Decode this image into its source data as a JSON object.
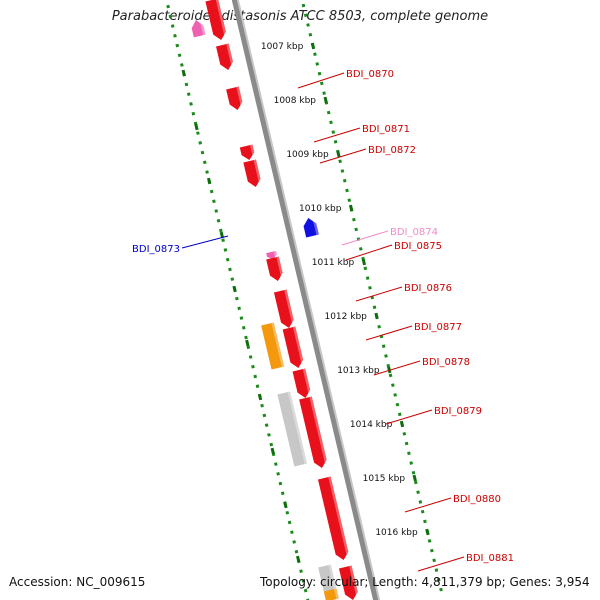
{
  "title": "Parabacteroides distasonis ATCC 8503, complete genome",
  "footer": {
    "accession": "Accession: NC_009615",
    "topology": "Topology: circular; Length: 4,811,379 bp; Genes: 3,954"
  },
  "colors": {
    "backbone": "#8a8a8a",
    "forward_gene": "#e8101a",
    "reverse_gene": "#1010e0",
    "orange_gene": "#f4980e",
    "gray_gene": "#c7c7c7",
    "pink_gene": "#f060b0",
    "tick_dots": "#1a8a1a"
  },
  "ticks": [
    {
      "label": "1007 kbp"
    },
    {
      "label": "1008 kbp"
    },
    {
      "label": "1009 kbp"
    },
    {
      "label": "1010 kbp"
    },
    {
      "label": "1011 kbp"
    },
    {
      "label": "1012 kbp"
    },
    {
      "label": "1013 kbp"
    },
    {
      "label": "1014 kbp"
    },
    {
      "label": "1015 kbp"
    },
    {
      "label": "1016 kbp"
    }
  ],
  "gene_labels": [
    {
      "name": "BDI_0870",
      "color": "#cc0000"
    },
    {
      "name": "BDI_0871",
      "color": "#cc0000"
    },
    {
      "name": "BDI_0872",
      "color": "#cc0000"
    },
    {
      "name": "BDI_0873",
      "color": "#0000cc"
    },
    {
      "name": "BDI_0874",
      "color": "#f08cc8"
    },
    {
      "name": "BDI_0875",
      "color": "#cc0000"
    },
    {
      "name": "BDI_0876",
      "color": "#cc0000"
    },
    {
      "name": "BDI_0877",
      "color": "#cc0000"
    },
    {
      "name": "BDI_0878",
      "color": "#cc0000"
    },
    {
      "name": "BDI_0879",
      "color": "#cc0000"
    },
    {
      "name": "BDI_0880",
      "color": "#cc0000"
    },
    {
      "name": "BDI_0881",
      "color": "#cc0000"
    }
  ]
}
